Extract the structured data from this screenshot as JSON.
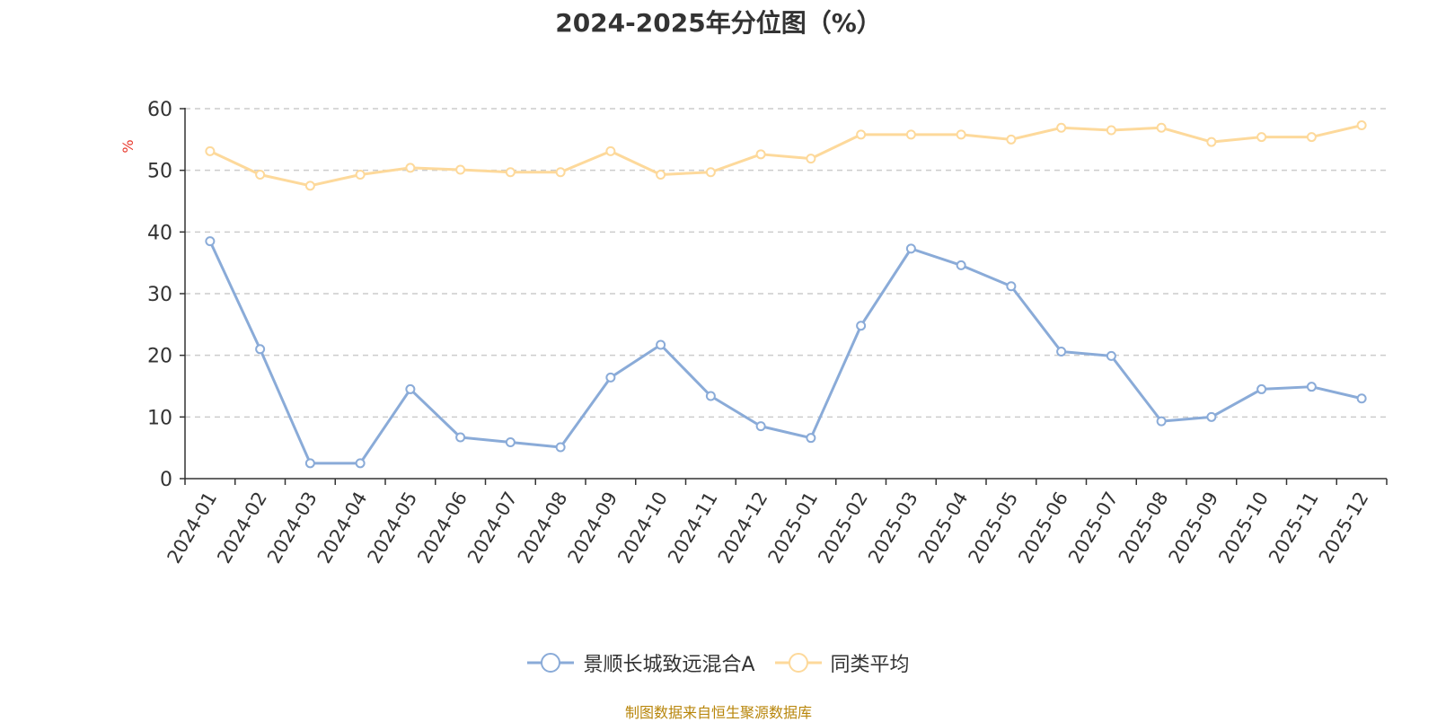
{
  "chart_data": {
    "type": "line",
    "title": "2024-2025年分位图（%）",
    "ylabel": "%",
    "xlabel": "",
    "ylim": [
      0,
      60
    ],
    "yticks": [
      0,
      10,
      20,
      30,
      40,
      50,
      60
    ],
    "grid": true,
    "legend_position": "bottom-center",
    "categories": [
      "2024-01",
      "2024-02",
      "2024-03",
      "2024-04",
      "2024-05",
      "2024-06",
      "2024-07",
      "2024-08",
      "2024-09",
      "2024-10",
      "2024-11",
      "2024-12",
      "2025-01",
      "2025-02",
      "2025-03",
      "2025-04",
      "2025-05",
      "2025-06",
      "2025-07",
      "2025-08",
      "2025-09",
      "2025-10",
      "2025-11",
      "2025-12"
    ],
    "series": [
      {
        "name": "景顺长城致远混合A",
        "color": "#8aabd8",
        "values": [
          38.5,
          21.0,
          2.5,
          2.5,
          14.5,
          6.7,
          5.9,
          5.1,
          16.4,
          21.7,
          13.4,
          8.5,
          6.6,
          24.8,
          37.3,
          34.6,
          31.2,
          20.6,
          19.9,
          9.3,
          10.0,
          14.5,
          14.9,
          13.0
        ]
      },
      {
        "name": "同类平均",
        "color": "#fdd99b",
        "values": [
          53.1,
          49.3,
          47.5,
          49.3,
          50.4,
          50.1,
          49.7,
          49.7,
          53.1,
          49.3,
          49.7,
          52.6,
          51.9,
          55.8,
          55.8,
          55.8,
          55.0,
          56.9,
          56.5,
          56.9,
          54.6,
          55.4,
          55.4,
          57.3
        ]
      }
    ]
  },
  "source": "制图数据来自恒生聚源数据库"
}
